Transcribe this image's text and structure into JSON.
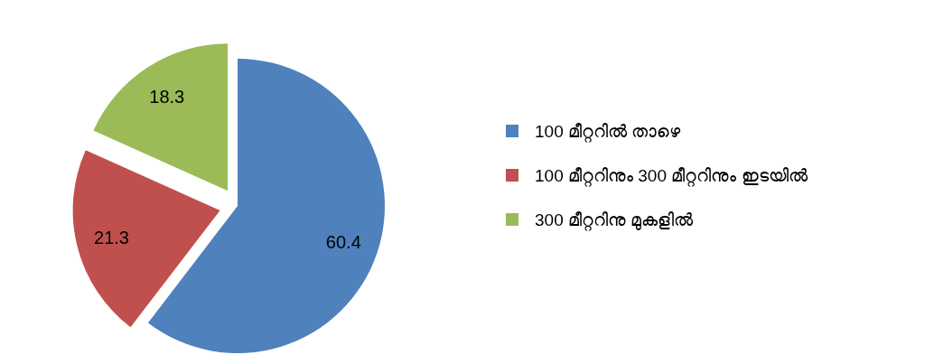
{
  "chart_data": {
    "type": "pie",
    "categories": [
      "100 മീറ്ററിൽ താഴെ",
      "100 മീറ്ററിനും 300 മീറ്ററിനും ഇടയിൽ",
      "300 മീറ്ററിനു മുകളിൽ"
    ],
    "values": [
      60.4,
      21.3,
      18.3
    ],
    "colors": [
      "#4f81bd",
      "#c0504d",
      "#9bbb59"
    ],
    "data_labels": true,
    "legend": "right"
  }
}
